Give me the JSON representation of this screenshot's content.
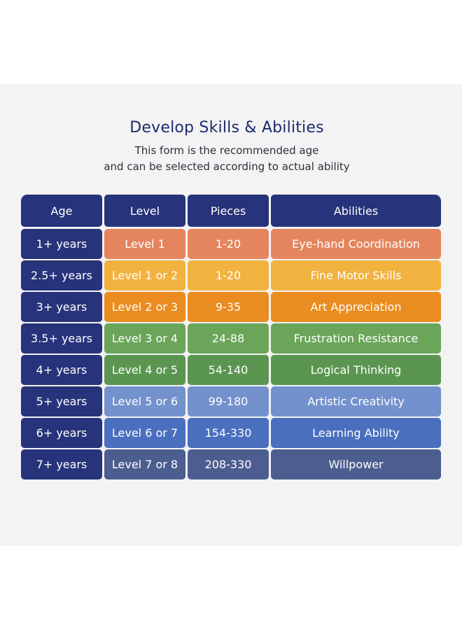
{
  "header": {
    "title": "Develop Skills & Abilities",
    "subtitle_line1": "This form is the recommended age",
    "subtitle_line2": "and can be  selected according to actual ability"
  },
  "table": {
    "columns": [
      "Age",
      "Level",
      "Pieces",
      "Abilities"
    ],
    "rows": [
      {
        "age": "1+ years",
        "level": "Level 1",
        "pieces": "1-20",
        "ability": "Eye-hand Coordination"
      },
      {
        "age": "2.5+ years",
        "level": "Level 1 or 2",
        "pieces": "1-20",
        "ability": "Fine Motor Skills"
      },
      {
        "age": "3+ years",
        "level": "Level 2 or 3",
        "pieces": "9-35",
        "ability": "Art Appreciation"
      },
      {
        "age": "3.5+ years",
        "level": "Level 3 or 4",
        "pieces": "24-88",
        "ability": "Frustration Resistance"
      },
      {
        "age": "4+ years",
        "level": "Level 4 or 5",
        "pieces": "54-140",
        "ability": "Logical Thinking"
      },
      {
        "age": "5+ years",
        "level": "Level 5 or 6",
        "pieces": "99-180",
        "ability": "Artistic Creativity"
      },
      {
        "age": "6+ years",
        "level": "Level 6 or 7",
        "pieces": "154-330",
        "ability": "Learning Ability"
      },
      {
        "age": "7+ years",
        "level": "Level 7 or 8",
        "pieces": "208-330",
        "ability": "Willpower"
      }
    ]
  },
  "colors": {
    "header_bg": "#27337a",
    "age_bg": "#27337a",
    "row_colors": [
      "#e5855e",
      "#f2b23f",
      "#ea8c1f",
      "#6aa55a",
      "#5b9651",
      "#7391cc",
      "#4a6fbf",
      "#4c5e8f"
    ]
  }
}
